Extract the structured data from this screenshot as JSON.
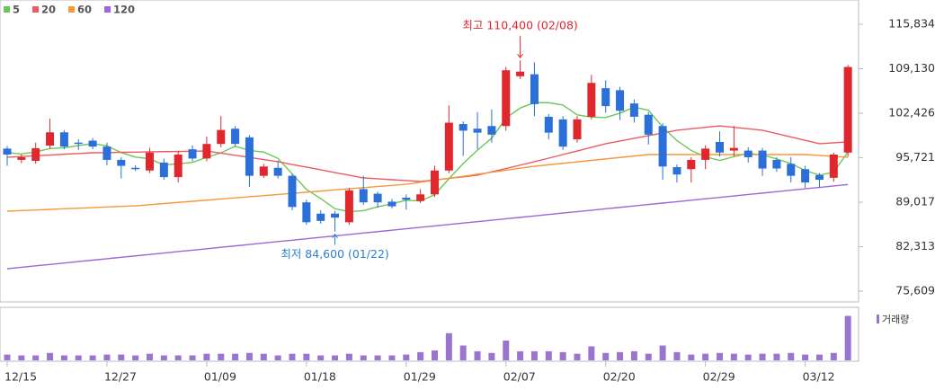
{
  "chart_data": {
    "type": "candlestick",
    "categories": [
      "12/15",
      null,
      null,
      null,
      null,
      null,
      null,
      "12/27",
      null,
      null,
      null,
      null,
      null,
      null,
      "01/09",
      null,
      null,
      null,
      null,
      null,
      null,
      "01/18",
      null,
      null,
      null,
      null,
      null,
      null,
      "01/29",
      null,
      null,
      null,
      null,
      null,
      null,
      "02/07",
      null,
      null,
      null,
      null,
      null,
      null,
      "02/20",
      null,
      null,
      null,
      null,
      null,
      null,
      "02/29",
      null,
      null,
      null,
      null,
      null,
      null,
      "03/12",
      null,
      null,
      null
    ],
    "open": [
      97100,
      95400,
      95250,
      97550,
      99550,
      98000,
      98300,
      97400,
      95400,
      94200,
      93800,
      95000,
      92800,
      97000,
      95600,
      97800,
      100100,
      98800,
      93000,
      94200,
      93000,
      89000,
      87300,
      87300,
      86000,
      91000,
      90300,
      89100,
      89700,
      89200,
      90200,
      93800,
      100800,
      100100,
      100500,
      100500,
      108000,
      108300,
      101900,
      101500,
      98500,
      101900,
      106200,
      105900,
      103900,
      102200,
      100500,
      94300,
      94000,
      95400,
      98100,
      96800,
      96800,
      96800,
      95400,
      94800,
      94000,
      93100,
      92700,
      96500
    ],
    "high": [
      97500,
      96200,
      98000,
      101600,
      99900,
      98500,
      98700,
      98000,
      95800,
      94600,
      97200,
      95600,
      96800,
      97600,
      98900,
      102000,
      100500,
      99100,
      94800,
      95300,
      93300,
      89400,
      87800,
      87700,
      91200,
      93000,
      90600,
      89500,
      90200,
      91000,
      94500,
      103600,
      101200,
      102600,
      103000,
      109400,
      110400,
      110100,
      102300,
      102000,
      102000,
      108200,
      107400,
      106400,
      104500,
      102600,
      100900,
      94700,
      95800,
      97600,
      99700,
      100500,
      97300,
      97200,
      95800,
      95800,
      94500,
      93400,
      96500,
      109700
    ],
    "low": [
      94500,
      94900,
      94800,
      97100,
      97000,
      96900,
      97000,
      94600,
      92600,
      93700,
      93400,
      92400,
      92000,
      95200,
      95200,
      97300,
      97400,
      91300,
      92700,
      92600,
      87800,
      85600,
      85800,
      84600,
      85600,
      88600,
      88200,
      88100,
      87900,
      88900,
      89800,
      93400,
      96000,
      97000,
      98000,
      99800,
      107600,
      102000,
      98500,
      96900,
      98000,
      101500,
      102500,
      101400,
      101000,
      97700,
      92400,
      92000,
      92000,
      94000,
      95900,
      95900,
      95000,
      93000,
      93600,
      92000,
      91200,
      91200,
      92100,
      95900
    ],
    "close": [
      96200,
      95800,
      97150,
      99550,
      97400,
      97800,
      97400,
      95400,
      94500,
      94000,
      96500,
      92800,
      96200,
      95600,
      97800,
      99900,
      97800,
      93000,
      94400,
      93000,
      88300,
      86000,
      86200,
      86700,
      90800,
      89000,
      89000,
      88400,
      89400,
      90200,
      93800,
      101000,
      99800,
      99500,
      99200,
      108900,
      108700,
      103800,
      99500,
      97400,
      101500,
      107000,
      103500,
      102800,
      101900,
      99200,
      94400,
      93200,
      95400,
      97100,
      96500,
      97200,
      95800,
      94100,
      94100,
      93000,
      92000,
      92400,
      96200,
      109400
    ],
    "up_color": "#e0272d",
    "down_color": "#2b6fd9",
    "series": [
      {
        "name": "5",
        "color": "#6cc757",
        "values": [
          96500,
          96300,
          96600,
          97100,
          97220,
          97540,
          97860,
          97510,
          96500,
          95820,
          95560,
          94640,
          94800,
          95020,
          95780,
          96460,
          97460,
          96820,
          96580,
          95620,
          93300,
          90940,
          89580,
          88040,
          87600,
          87740,
          88340,
          88780,
          89320,
          89200,
          90160,
          92560,
          94840,
          96860,
          98660,
          101680,
          103220,
          104020,
          104020,
          103660,
          102180,
          101840,
          101780,
          102440,
          103340,
          102880,
          100360,
          98300,
          96820,
          95860,
          95320,
          95880,
          96400,
          96140,
          95540,
          94840,
          93800,
          93120,
          93540,
          96600
        ]
      },
      {
        "name": "20",
        "color": "#ec5b62",
        "values": [
          95800,
          95910,
          96020,
          96130,
          96250,
          96360,
          96470,
          96500,
          96540,
          96570,
          96610,
          96640,
          96670,
          96710,
          96740,
          96420,
          96090,
          95770,
          95440,
          95120,
          94710,
          94310,
          93900,
          93490,
          93090,
          92680,
          92550,
          92410,
          92280,
          92140,
          92380,
          92620,
          92850,
          93090,
          93600,
          94100,
          94610,
          95120,
          95660,
          96200,
          96740,
          97290,
          97830,
          98240,
          98640,
          99050,
          99450,
          99860,
          100080,
          100310,
          100530,
          100310,
          100080,
          99860,
          99350,
          98850,
          98340,
          97830,
          97970,
          98100
        ]
      },
      {
        "name": "60",
        "color": "#f5993a",
        "values": [
          87670,
          87760,
          87850,
          87940,
          88030,
          88120,
          88210,
          88300,
          88390,
          88480,
          88650,
          88820,
          88990,
          89160,
          89330,
          89510,
          89680,
          89850,
          90020,
          90190,
          90360,
          90530,
          90700,
          90880,
          91050,
          91220,
          91390,
          91560,
          91730,
          92030,
          92330,
          92630,
          92930,
          93240,
          93540,
          93840,
          94140,
          94440,
          94660,
          94880,
          95100,
          95320,
          95540,
          95760,
          95980,
          96200,
          96200,
          96200,
          96200,
          96200,
          96200,
          96200,
          96200,
          96200,
          96200,
          96200,
          96200,
          96070,
          95930,
          95800
        ]
      },
      {
        "name": "120",
        "color": "#a066d8",
        "values": [
          79000,
          79215,
          79430,
          79645,
          79860,
          80075,
          80290,
          80505,
          80720,
          80935,
          81150,
          81365,
          81580,
          81795,
          82010,
          82225,
          82440,
          82655,
          82870,
          83085,
          83300,
          83515,
          83730,
          83945,
          84160,
          84375,
          84590,
          84805,
          85020,
          85235,
          85450,
          85665,
          85880,
          86095,
          86310,
          86525,
          86740,
          86955,
          87170,
          87385,
          87600,
          87815,
          88030,
          88245,
          88460,
          88675,
          88890,
          89105,
          89320,
          89535,
          89750,
          89965,
          90180,
          90395,
          90610,
          90825,
          91040,
          91255,
          91470,
          91685
        ]
      }
    ],
    "ylim": [
      74130,
      119490
    ],
    "yticks": [
      {
        "value": 115834,
        "label": "115,834"
      },
      {
        "value": 109130,
        "label": "109,130"
      },
      {
        "value": 102426,
        "label": "102,426"
      },
      {
        "value": 95721,
        "label": "95,721"
      },
      {
        "value": 89017,
        "label": "89,017"
      },
      {
        "value": 82313,
        "label": "82,313"
      },
      {
        "value": 75609,
        "label": "75,609"
      }
    ],
    "volume": {
      "name": "거래량",
      "color": "#9b74cf",
      "ylim": [
        0,
        60
      ],
      "values": [
        7,
        6,
        6,
        9,
        6,
        6,
        6,
        7,
        7,
        6,
        8,
        6,
        6,
        6,
        8,
        8,
        8,
        9,
        8,
        6,
        8,
        8,
        6,
        6,
        8,
        6,
        6,
        6,
        7,
        10,
        12,
        33,
        18,
        11,
        9,
        24,
        11,
        11,
        11,
        10,
        8,
        17,
        9,
        10,
        11,
        8,
        18,
        10,
        7,
        8,
        9,
        8,
        7,
        8,
        8,
        9,
        7,
        7,
        9,
        54
      ]
    },
    "annotations": [
      {
        "text": "최고 110,400 (02/08)",
        "color": "#e0272d"
      },
      {
        "text": "최저 84,600 (01/22)",
        "color": "#2b7fd0"
      }
    ]
  }
}
